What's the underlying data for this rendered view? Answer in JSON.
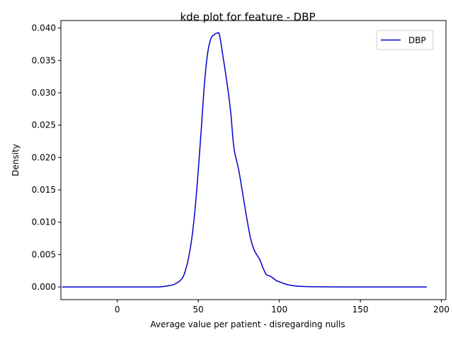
{
  "chart_data": {
    "type": "line",
    "title": "kde plot for feature -  DBP",
    "xlabel": "Average value per patient - disregarding nulls",
    "ylabel": "Density",
    "xlim": [
      -34.8,
      202.8
    ],
    "ylim": [
      -0.00196,
      0.04116
    ],
    "xticks": [
      0,
      50,
      100,
      150,
      200
    ],
    "xtick_labels": [
      "0",
      "50",
      "100",
      "150",
      "200"
    ],
    "yticks": [
      0.0,
      0.005,
      0.01,
      0.015,
      0.02,
      0.025,
      0.03,
      0.035,
      0.04
    ],
    "ytick_labels": [
      "0.000",
      "0.005",
      "0.010",
      "0.015",
      "0.020",
      "0.025",
      "0.030",
      "0.035",
      "0.040"
    ],
    "grid": false,
    "legend": "top-right",
    "series": [
      {
        "name": "DBP",
        "color": "#0000cc",
        "x": [
          -34,
          0,
          20,
          27,
          32,
          36,
          40,
          42,
          44,
          46,
          48,
          50,
          52,
          54,
          56,
          58,
          60,
          61.5,
          63,
          65,
          68,
          70,
          72,
          75,
          78,
          80,
          82,
          84,
          86,
          88,
          90,
          92,
          94,
          96,
          98,
          100,
          103,
          106,
          110,
          115,
          125,
          140,
          160,
          191
        ],
        "y": [
          0.0,
          0.0,
          0.0,
          2e-05,
          0.0002,
          0.0005,
          0.0013,
          0.0025,
          0.0045,
          0.0075,
          0.012,
          0.018,
          0.025,
          0.032,
          0.0365,
          0.0385,
          0.039,
          0.0392,
          0.039,
          0.036,
          0.031,
          0.027,
          0.0215,
          0.018,
          0.0135,
          0.0105,
          0.0078,
          0.006,
          0.005,
          0.0042,
          0.0029,
          0.0019,
          0.0017,
          0.0014,
          0.001,
          0.0008,
          0.0005,
          0.0003,
          0.00015,
          7e-05,
          2e-05,
          0.0,
          0.0,
          0.0
        ]
      }
    ]
  }
}
